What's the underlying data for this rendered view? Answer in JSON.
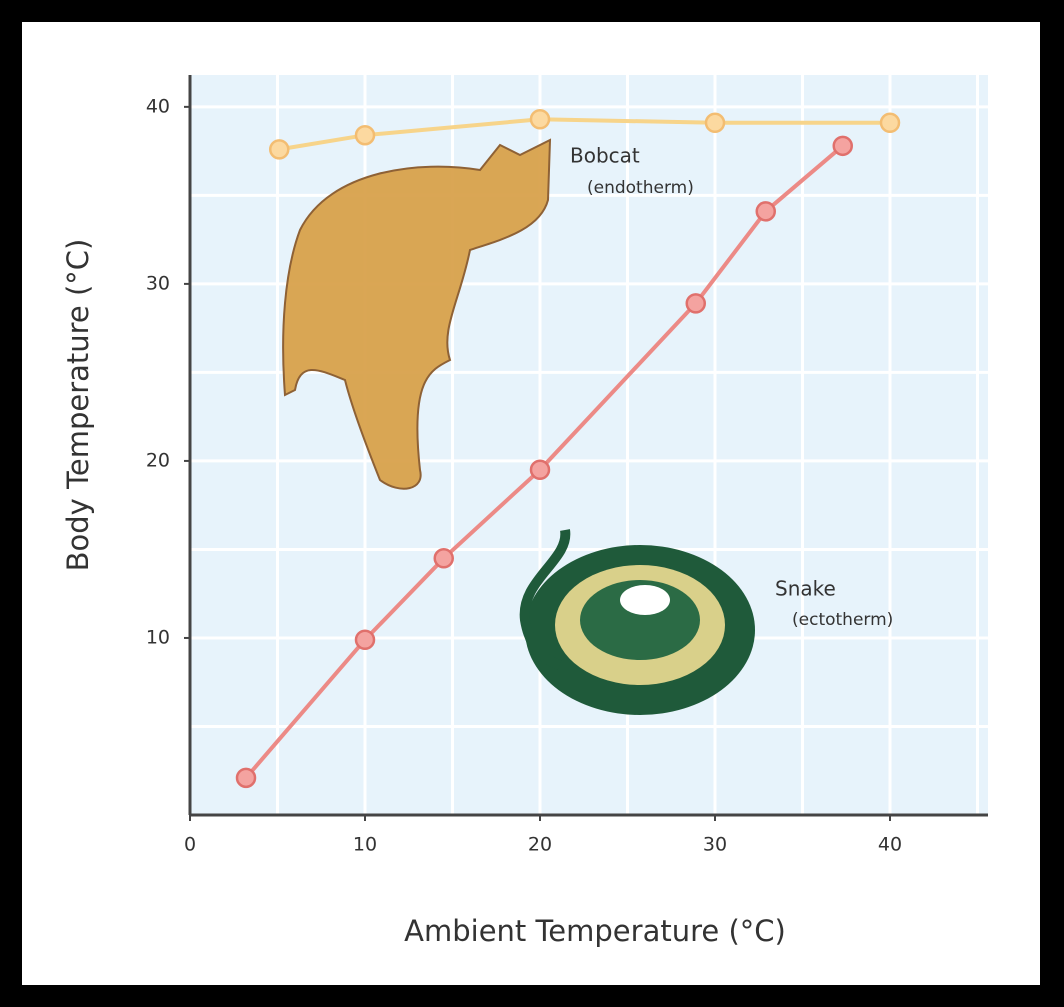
{
  "chart_data": {
    "type": "line",
    "x_label": "Ambient Temperature (°C)",
    "y_label": "Body Temperature (°C)",
    "xlim": [
      0,
      45.6
    ],
    "ylim": [
      0,
      41.8
    ],
    "xticks": [
      0,
      10,
      20,
      30,
      40
    ],
    "yticks": [
      10,
      20,
      30,
      40
    ],
    "xgrid": [
      5,
      10,
      15,
      20,
      25,
      30,
      35,
      40,
      45
    ],
    "ygrid": [
      5,
      10,
      15,
      20,
      25,
      30,
      35,
      40
    ],
    "grid": true,
    "series": [
      {
        "name": "Bobcat",
        "note": "(endotherm)",
        "color": "#f7d48a",
        "marker_fill": "#fcd9a0",
        "marker_stroke": "#f3bd72",
        "x": [
          5.1,
          10,
          20,
          30,
          40
        ],
        "values": [
          37.6,
          38.4,
          39.3,
          39.1,
          39.1
        ]
      },
      {
        "name": "Snake",
        "note": "(ectotherm)",
        "color": "#ec8a86",
        "marker_fill": "#f4a3a0",
        "marker_stroke": "#e0706c",
        "x": [
          3.2,
          10,
          14.5,
          20,
          28.9,
          32.9,
          37.3
        ],
        "values": [
          2.1,
          9.9,
          14.5,
          19.5,
          28.9,
          34.1,
          37.8
        ]
      }
    ]
  }
}
